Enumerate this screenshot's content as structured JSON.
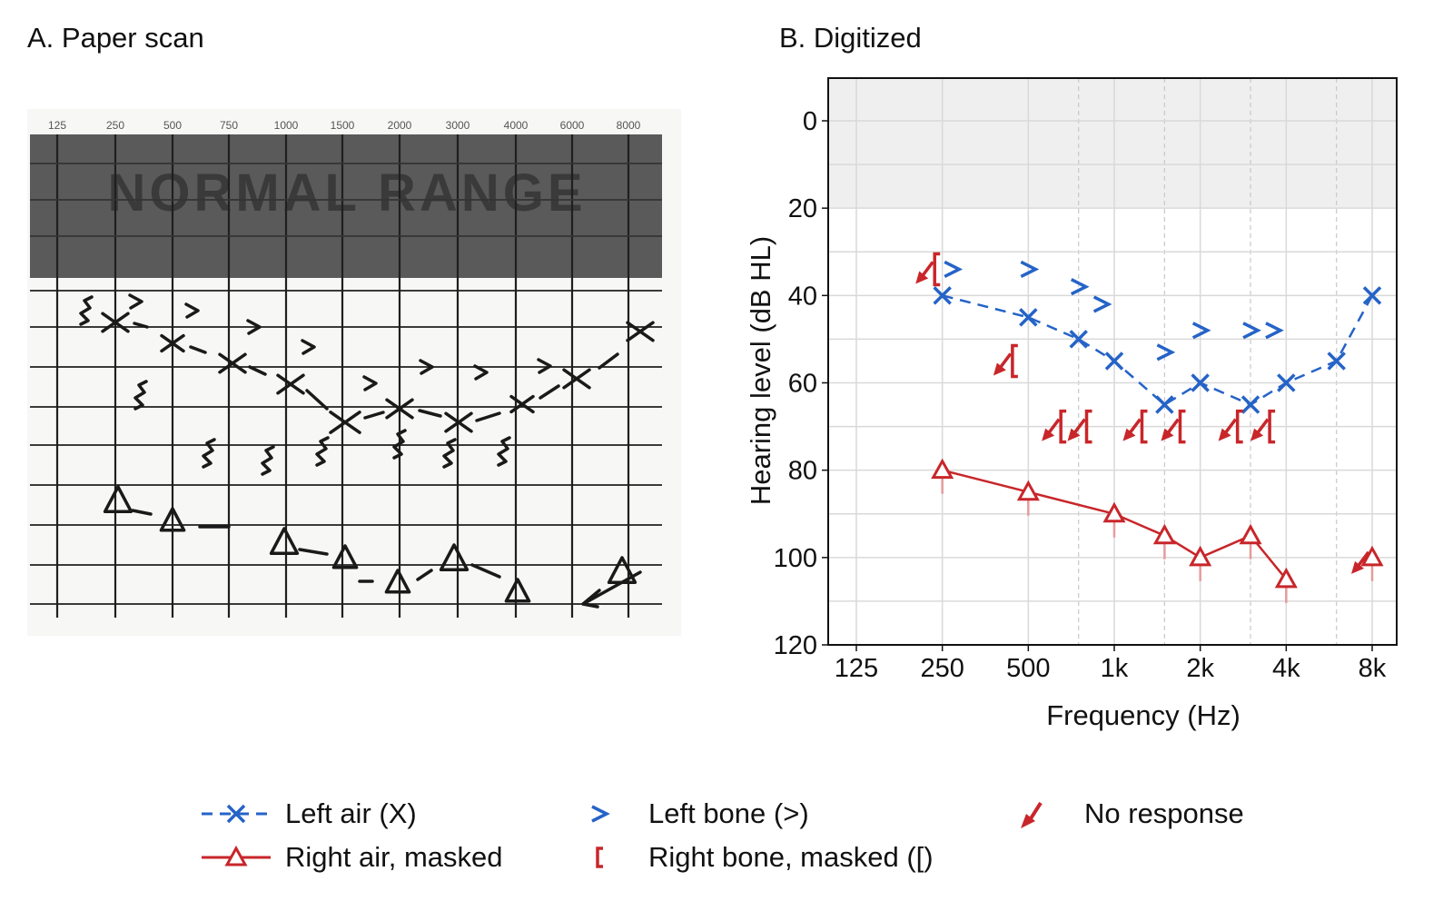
{
  "panels": {
    "a_title": "A. Paper scan",
    "b_title": "B. Digitized"
  },
  "scan": {
    "freq_labels": [
      "125",
      "250",
      "500",
      "750",
      "1000",
      "1500",
      "2000",
      "3000",
      "4000",
      "6000",
      "8000"
    ],
    "band_text": "NORMAL RANGE",
    "colors": {
      "ink": "#1a1a1a",
      "band": "#5a5a5a",
      "paper": "#f7f7f5"
    }
  },
  "chart_data": {
    "type": "scatter",
    "xlabel": "Frequency (Hz)",
    "ylabel": "Hearing level (dB HL)",
    "x_scale": "log2",
    "x_ticks": [
      125,
      250,
      500,
      1000,
      2000,
      4000,
      8000
    ],
    "x_tick_labels": [
      "125",
      "250",
      "500",
      "1k",
      "2k",
      "4k",
      "8k"
    ],
    "x_minor_ticks": [
      750,
      1500,
      3000,
      6000
    ],
    "y_ticks": [
      0,
      20,
      40,
      60,
      80,
      100,
      120
    ],
    "y_tick_labels": [
      "0",
      "20",
      "40",
      "60",
      "80",
      "100",
      "120"
    ],
    "ylim": [
      -10,
      120
    ],
    "y_inverted": true,
    "normal_range": [
      -10,
      20
    ],
    "grid": true,
    "series": [
      {
        "name": "Left air (X)",
        "marker": "x",
        "line": "dashed",
        "color": "#2563c7",
        "points": [
          [
            250,
            40
          ],
          [
            500,
            45
          ],
          [
            750,
            50
          ],
          [
            1000,
            55
          ],
          [
            1500,
            65
          ],
          [
            2000,
            60
          ],
          [
            3000,
            65
          ],
          [
            4000,
            60
          ],
          [
            6000,
            55
          ],
          [
            8000,
            40
          ]
        ]
      },
      {
        "name": "Left bone (>)",
        "marker": ">",
        "line": "none",
        "color": "#2563c7",
        "points": [
          [
            270,
            34
          ],
          [
            500,
            34
          ],
          [
            750,
            38
          ],
          [
            900,
            42
          ],
          [
            1500,
            53
          ],
          [
            2000,
            48
          ],
          [
            3000,
            48
          ],
          [
            3600,
            48
          ]
        ]
      },
      {
        "name": "Right air, masked",
        "marker": "triangle",
        "line": "solid",
        "color": "#c8262a",
        "points": [
          [
            250,
            80
          ],
          [
            500,
            85
          ],
          [
            1000,
            90
          ],
          [
            1500,
            95
          ],
          [
            2000,
            100
          ],
          [
            3000,
            95
          ],
          [
            4000,
            105
          ]
        ],
        "no_response_points": [
          [
            8000,
            100
          ]
        ]
      },
      {
        "name": "Right bone, masked ([)",
        "marker": "[",
        "line": "none",
        "color": "#c8262a",
        "points": [
          [
            235,
            34
          ],
          [
            440,
            55
          ],
          [
            650,
            70
          ],
          [
            800,
            70
          ],
          [
            1250,
            70
          ],
          [
            1700,
            70
          ],
          [
            2700,
            70
          ],
          [
            3500,
            70
          ]
        ],
        "no_response": true
      }
    ],
    "legend": {
      "placement": "bottom",
      "items": [
        {
          "key": "left_air",
          "label": "Left air (X)"
        },
        {
          "key": "left_bone",
          "label": "Left bone (>)"
        },
        {
          "key": "no_response",
          "label": "No response"
        },
        {
          "key": "right_air",
          "label": "Right air, masked"
        },
        {
          "key": "right_bone",
          "label": "Right bone, masked ([)"
        }
      ]
    },
    "colors": {
      "blue": "#2563c7",
      "red": "#c8262a",
      "grid": "#d9d9d9",
      "band": "#efefef"
    }
  }
}
